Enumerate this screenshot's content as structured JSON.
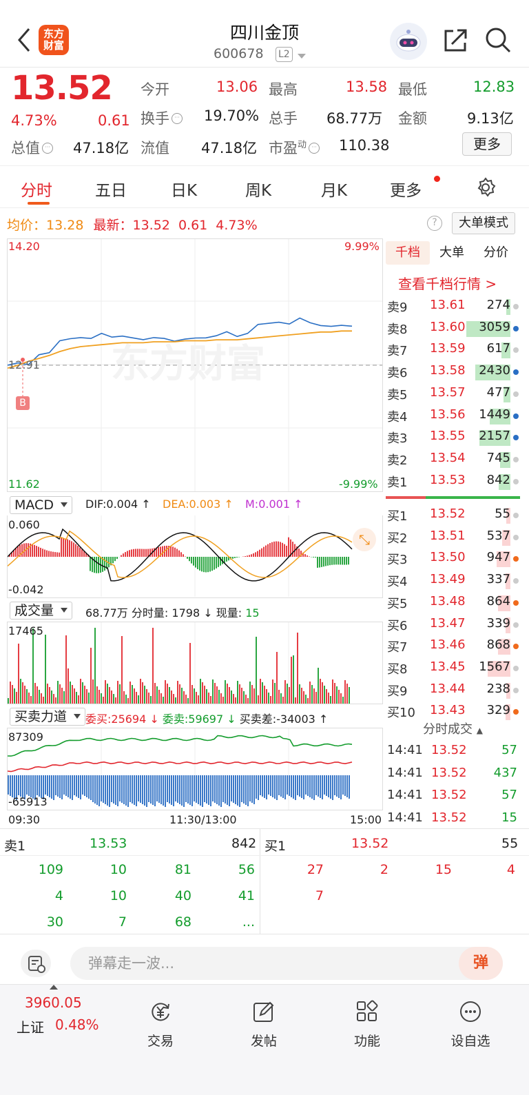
{
  "header": {
    "logo_text": "东方财富",
    "stock_name": "四川金顶",
    "stock_code": "600678",
    "level_badge": "L2"
  },
  "quote": {
    "price": "13.52",
    "change_pct": "4.73%",
    "change": "0.61",
    "stats": [
      {
        "label": "今开",
        "value": "13.06",
        "color": "red"
      },
      {
        "label": "最高",
        "value": "13.58",
        "color": "red"
      },
      {
        "label": "最低",
        "value": "12.83",
        "color": "green"
      },
      {
        "label": "换手",
        "value": "19.70%",
        "color": "black"
      },
      {
        "label": "总手",
        "value": "68.77万",
        "color": "black"
      },
      {
        "label": "金额",
        "value": "9.13亿",
        "color": "black"
      },
      {
        "label": "总值",
        "value": "47.18亿",
        "color": "black"
      },
      {
        "label": "流值",
        "value": "47.18亿",
        "color": "black"
      },
      {
        "label": "市盈",
        "value": "110.38",
        "color": "black"
      }
    ],
    "pe_superscript": "动",
    "more_button": "更多"
  },
  "tabs": [
    "分时",
    "五日",
    "日K",
    "周K",
    "月K",
    "更多"
  ],
  "infoline": {
    "avg_label": "均价：",
    "avg_value": "13.28",
    "latest_label": "最新：",
    "latest_value": "13.52",
    "change": "0.61",
    "change_pct": "4.73%",
    "help_icon": "?",
    "big_order_mode": "大单模式"
  },
  "price_chart": {
    "y_high": "14.20",
    "y_low": "11.62",
    "pct_high": "9.99%",
    "pct_low": "-9.99%",
    "prev_close": "12.91",
    "buy_marker": "B",
    "watermark": "东方财富",
    "price_series": [
      12.91,
      12.93,
      12.92,
      13.03,
      13.03,
      13.16,
      13.19,
      13.18,
      13.18,
      13.24,
      13.21,
      13.2,
      13.19,
      13.18,
      13.18,
      13.18,
      13.16,
      13.19,
      13.18,
      13.19,
      13.22,
      13.24,
      13.2,
      13.24,
      13.34,
      13.33,
      13.35,
      13.34,
      13.38,
      13.34,
      13.32,
      13.32,
      13.31,
      13.31
    ],
    "avg_series": [
      12.88,
      12.91,
      12.95,
      12.98,
      13.01,
      13.05,
      13.08,
      13.1,
      13.11,
      13.12,
      13.13,
      13.14,
      13.14,
      13.14,
      13.15,
      13.15,
      13.15,
      13.16,
      13.16,
      13.16,
      13.17,
      13.17,
      13.17,
      13.18,
      13.19,
      13.2,
      13.21,
      13.22,
      13.23,
      13.24,
      13.25,
      13.25,
      13.26,
      13.26
    ]
  },
  "macd": {
    "selector": "MACD",
    "dif": "DIF:0.004",
    "dea": "DEA:0.003",
    "m": "M:0.001",
    "y_top": "0.060",
    "y_bottom": "-0.042"
  },
  "volume": {
    "selector": "成交量",
    "summary_total": "68.77万",
    "summary_minute_label": "分时量:",
    "summary_minute": "1798",
    "summary_now_label": "现量:",
    "summary_now": "15",
    "y_top": "17465"
  },
  "force": {
    "selector": "买卖力道",
    "wei_buy": "委买:25694",
    "wei_sell": "委卖:59697",
    "diff": "买卖差:-34003",
    "y_top": "87309",
    "y_bottom": "-65913"
  },
  "time_axis": [
    "09:30",
    "11:30/13:00",
    "15:00"
  ],
  "orderbook": {
    "tabs": [
      "千档",
      "大单",
      "分价"
    ],
    "view_more": "查看千档行情 >",
    "asks": [
      {
        "name": "卖9",
        "price": "13.61",
        "vol": "274",
        "frac": 0.09,
        "dot": "gray"
      },
      {
        "name": "卖8",
        "price": "13.60",
        "vol": "3059",
        "frac": 1.0,
        "dot": "blue"
      },
      {
        "name": "卖7",
        "price": "13.59",
        "vol": "617",
        "frac": 0.2,
        "dot": "gray"
      },
      {
        "name": "卖6",
        "price": "13.58",
        "vol": "2430",
        "frac": 0.79,
        "dot": "blue"
      },
      {
        "name": "卖5",
        "price": "13.57",
        "vol": "477",
        "frac": 0.16,
        "dot": "gray"
      },
      {
        "name": "卖4",
        "price": "13.56",
        "vol": "1449",
        "frac": 0.47,
        "dot": "blue"
      },
      {
        "name": "卖3",
        "price": "13.55",
        "vol": "2157",
        "frac": 0.7,
        "dot": "blue"
      },
      {
        "name": "卖2",
        "price": "13.54",
        "vol": "745",
        "frac": 0.24,
        "dot": "gray"
      },
      {
        "name": "卖1",
        "price": "13.53",
        "vol": "842",
        "frac": 0.27,
        "dot": "gray"
      }
    ],
    "bids": [
      {
        "name": "买1",
        "price": "13.52",
        "vol": "55",
        "frac": 0.02,
        "dot": "gray"
      },
      {
        "name": "买2",
        "price": "13.51",
        "vol": "537",
        "frac": 0.18,
        "dot": "gray"
      },
      {
        "name": "买3",
        "price": "13.50",
        "vol": "947",
        "frac": 0.31,
        "dot": "orange"
      },
      {
        "name": "买4",
        "price": "13.49",
        "vol": "337",
        "frac": 0.11,
        "dot": "gray"
      },
      {
        "name": "买5",
        "price": "13.48",
        "vol": "864",
        "frac": 0.28,
        "dot": "orange"
      },
      {
        "name": "买6",
        "price": "13.47",
        "vol": "339",
        "frac": 0.11,
        "dot": "gray"
      },
      {
        "name": "买7",
        "price": "13.46",
        "vol": "868",
        "frac": 0.28,
        "dot": "orange"
      },
      {
        "name": "买8",
        "price": "13.45",
        "vol": "1567",
        "frac": 0.51,
        "dot": "gray"
      },
      {
        "name": "买9",
        "price": "13.44",
        "vol": "238",
        "frac": 0.08,
        "dot": "gray"
      },
      {
        "name": "买10",
        "price": "13.43",
        "vol": "329",
        "frac": 0.11,
        "dot": "orange"
      }
    ],
    "ticks_title": "分时成交",
    "ticks": [
      {
        "time": "14:41",
        "price": "13.52",
        "vol": "57"
      },
      {
        "time": "14:41",
        "price": "13.52",
        "vol": "437"
      },
      {
        "time": "14:41",
        "price": "13.52",
        "vol": "57"
      },
      {
        "time": "14:41",
        "price": "13.52",
        "vol": "15"
      }
    ]
  },
  "queue": {
    "sell_label": "卖1",
    "sell_price": "13.53",
    "sell_total": "842",
    "buy_label": "买1",
    "buy_price": "13.52",
    "buy_total": "55",
    "sell_rows": [
      [
        "109",
        "10",
        "81",
        "56"
      ],
      [
        "4",
        "10",
        "40",
        "41"
      ],
      [
        "30",
        "7",
        "68",
        "..."
      ]
    ],
    "buy_rows": [
      [
        "27",
        "2",
        "15",
        "4"
      ],
      [
        "7",
        "",
        "",
        ""
      ]
    ]
  },
  "comment": {
    "placeholder": "弹幕走一波...",
    "danmu_label": "弹"
  },
  "nav": {
    "index_value": "3960.05",
    "index_name": "上证",
    "index_change": "0.48%",
    "items": [
      "交易",
      "发帖",
      "功能",
      "设自选"
    ]
  },
  "colors": {
    "up": "#e2262d",
    "down": "#139c2c",
    "price_line": "#2a6fc4",
    "avg_line": "#f0a020",
    "accent": "#f05a1c"
  }
}
